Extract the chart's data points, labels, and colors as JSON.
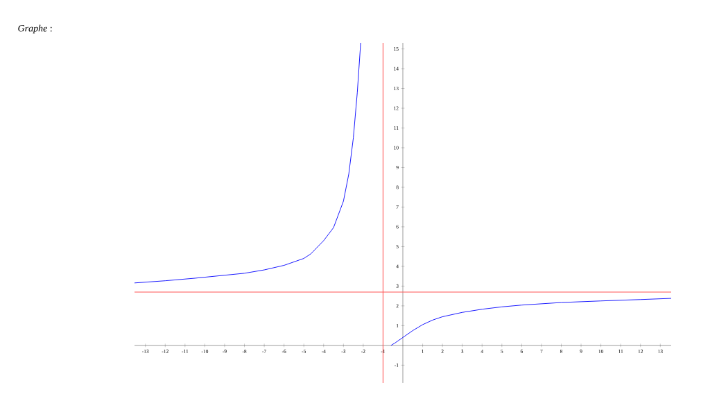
{
  "chart_data": {
    "type": "line",
    "title": "*Graphe* :",
    "x": [
      -13.55,
      -12,
      -10.5,
      -9,
      -8,
      -7,
      -6,
      -5,
      -4.65,
      -4,
      -3.5,
      -3,
      -2.73,
      -2.5,
      -2.3,
      -2.13,
      -1.5,
      -0.6,
      -0.4,
      0,
      0.5,
      1,
      1.5,
      2,
      3,
      4,
      5,
      6,
      8,
      10,
      12,
      13.55
    ],
    "series": [
      {
        "color": "#0000ff",
        "values": [
          3.16,
          3.27,
          3.4,
          3.55,
          3.65,
          3.82,
          4.05,
          4.4,
          4.63,
          5.3,
          5.96,
          7.3,
          8.67,
          10.5,
          12.8,
          15.3,
          null,
          0,
          0.12,
          0.4,
          0.75,
          1.05,
          1.28,
          1.45,
          1.67,
          1.83,
          1.95,
          2.04,
          2.17,
          2.25,
          2.32,
          2.38
        ]
      }
    ],
    "xlim": [
      -13.55,
      13.55
    ],
    "ylim": [
      -1.9,
      15.3
    ],
    "xticks": [
      -13,
      -12,
      -11,
      -10,
      -9,
      -8,
      -7,
      -6,
      -5,
      -4,
      -3,
      -2,
      -1,
      1,
      2,
      3,
      4,
      5,
      6,
      7,
      8,
      9,
      10,
      11,
      12,
      13
    ],
    "yticks": [
      -1,
      1,
      2,
      3,
      4,
      5,
      6,
      7,
      8,
      9,
      10,
      11,
      12,
      13,
      14,
      15
    ],
    "ref_lines": [
      {
        "axis": "x",
        "value": -1,
        "color": "#ff5555"
      },
      {
        "axis": "y",
        "value": 2.7,
        "color": "#ff5555"
      }
    ],
    "marker": "none",
    "line_style": "solid"
  }
}
